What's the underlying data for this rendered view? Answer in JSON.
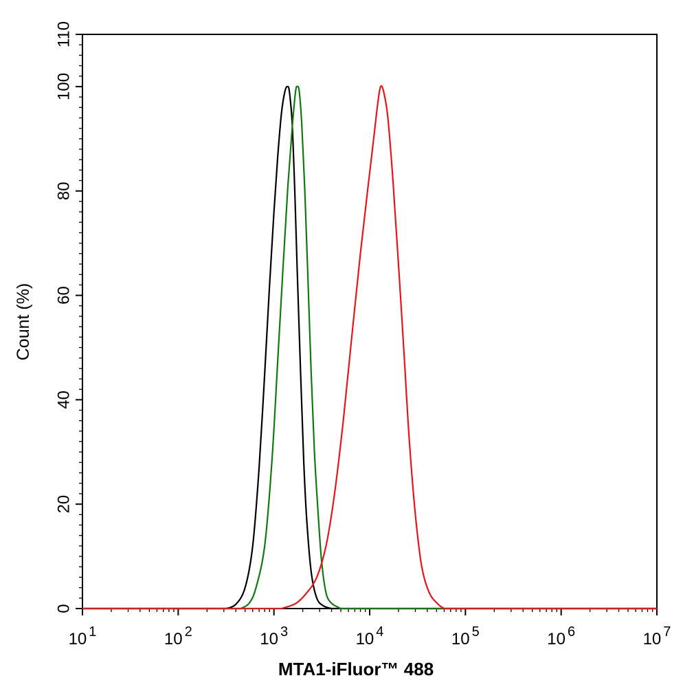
{
  "chart_data": {
    "type": "line",
    "title": "",
    "xlabel": "MTA1-iFluor™ 488",
    "ylabel": "Count  (%)",
    "xscale": "log",
    "xlim": [
      10,
      10000000
    ],
    "ylim": [
      0,
      110
    ],
    "grid": false,
    "x_ticks": [
      {
        "base": "10",
        "exp": "1"
      },
      {
        "base": "10",
        "exp": "2"
      },
      {
        "base": "10",
        "exp": "3"
      },
      {
        "base": "10",
        "exp": "4"
      },
      {
        "base": "10",
        "exp": "5"
      },
      {
        "base": "10",
        "exp": "6"
      },
      {
        "base": "10",
        "exp": "7"
      }
    ],
    "y_ticks": [
      "0",
      "20",
      "40",
      "60",
      "80",
      "100",
      "110"
    ],
    "series": [
      {
        "color": "#000000",
        "points": [
          [
            316,
            0
          ],
          [
            400,
            0.8
          ],
          [
            500,
            4
          ],
          [
            600,
            12
          ],
          [
            700,
            27
          ],
          [
            800,
            45
          ],
          [
            900,
            62
          ],
          [
            1000,
            76
          ],
          [
            1100,
            87
          ],
          [
            1200,
            95
          ],
          [
            1300,
            99
          ],
          [
            1380,
            100
          ],
          [
            1450,
            99
          ],
          [
            1550,
            93
          ],
          [
            1650,
            80
          ],
          [
            1750,
            65
          ],
          [
            1900,
            45
          ],
          [
            2050,
            28
          ],
          [
            2200,
            17
          ],
          [
            2450,
            7
          ],
          [
            2800,
            2
          ],
          [
            3300,
            0.5
          ],
          [
            4000,
            0
          ]
        ]
      },
      {
        "color": "#107a10",
        "points": [
          [
            450,
            0
          ],
          [
            550,
            1
          ],
          [
            650,
            4
          ],
          [
            800,
            12
          ],
          [
            950,
            28
          ],
          [
            1100,
            48
          ],
          [
            1250,
            66
          ],
          [
            1400,
            81
          ],
          [
            1550,
            92
          ],
          [
            1680,
            99
          ],
          [
            1760,
            100
          ],
          [
            1840,
            99
          ],
          [
            1950,
            93
          ],
          [
            2100,
            80
          ],
          [
            2250,
            65
          ],
          [
            2450,
            45
          ],
          [
            2650,
            30
          ],
          [
            2900,
            18
          ],
          [
            3150,
            9
          ],
          [
            3500,
            3
          ],
          [
            4000,
            1
          ],
          [
            5000,
            0
          ]
        ]
      },
      {
        "color": "#e8141b",
        "points": [
          [
            1200,
            0
          ],
          [
            1700,
            1
          ],
          [
            2200,
            3
          ],
          [
            2800,
            6
          ],
          [
            3500,
            12
          ],
          [
            4300,
            22
          ],
          [
            5300,
            36
          ],
          [
            6500,
            52
          ],
          [
            8000,
            68
          ],
          [
            9500,
            80
          ],
          [
            11000,
            90
          ],
          [
            12200,
            97
          ],
          [
            13000,
            100
          ],
          [
            14000,
            99
          ],
          [
            15500,
            94
          ],
          [
            17500,
            82
          ],
          [
            20000,
            66
          ],
          [
            23000,
            48
          ],
          [
            26000,
            32
          ],
          [
            30000,
            18
          ],
          [
            35000,
            8
          ],
          [
            42000,
            3
          ],
          [
            52000,
            0.8
          ],
          [
            60000,
            0
          ]
        ]
      }
    ]
  }
}
